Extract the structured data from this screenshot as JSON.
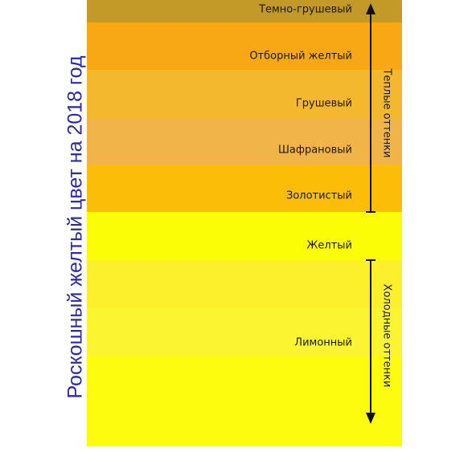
{
  "title": "Роскошный желтый цвет на 2018 год",
  "bands": [
    {
      "color": "#c39a28"
    },
    {
      "color": "#f7a814"
    },
    {
      "color": "#f4b82f"
    },
    {
      "color": "#f1b448"
    },
    {
      "color": "#fbbd07"
    },
    {
      "color": "#fafd05"
    },
    {
      "color": "#fcef2c"
    },
    {
      "color": "#fbf430"
    },
    {
      "color": "#fdfc0f"
    }
  ],
  "labels": {
    "dark_pear": "Темно-грушевый",
    "select_yellow": "Отборный желтый",
    "pear": "Грушевый",
    "saffron": "Шафрановый",
    "golden": "Золотистый",
    "yellow": "Желтый",
    "lemon": "Лимонный"
  },
  "groups": {
    "warm": "Теплые оттенки",
    "cold": "Холодные оттенки"
  }
}
